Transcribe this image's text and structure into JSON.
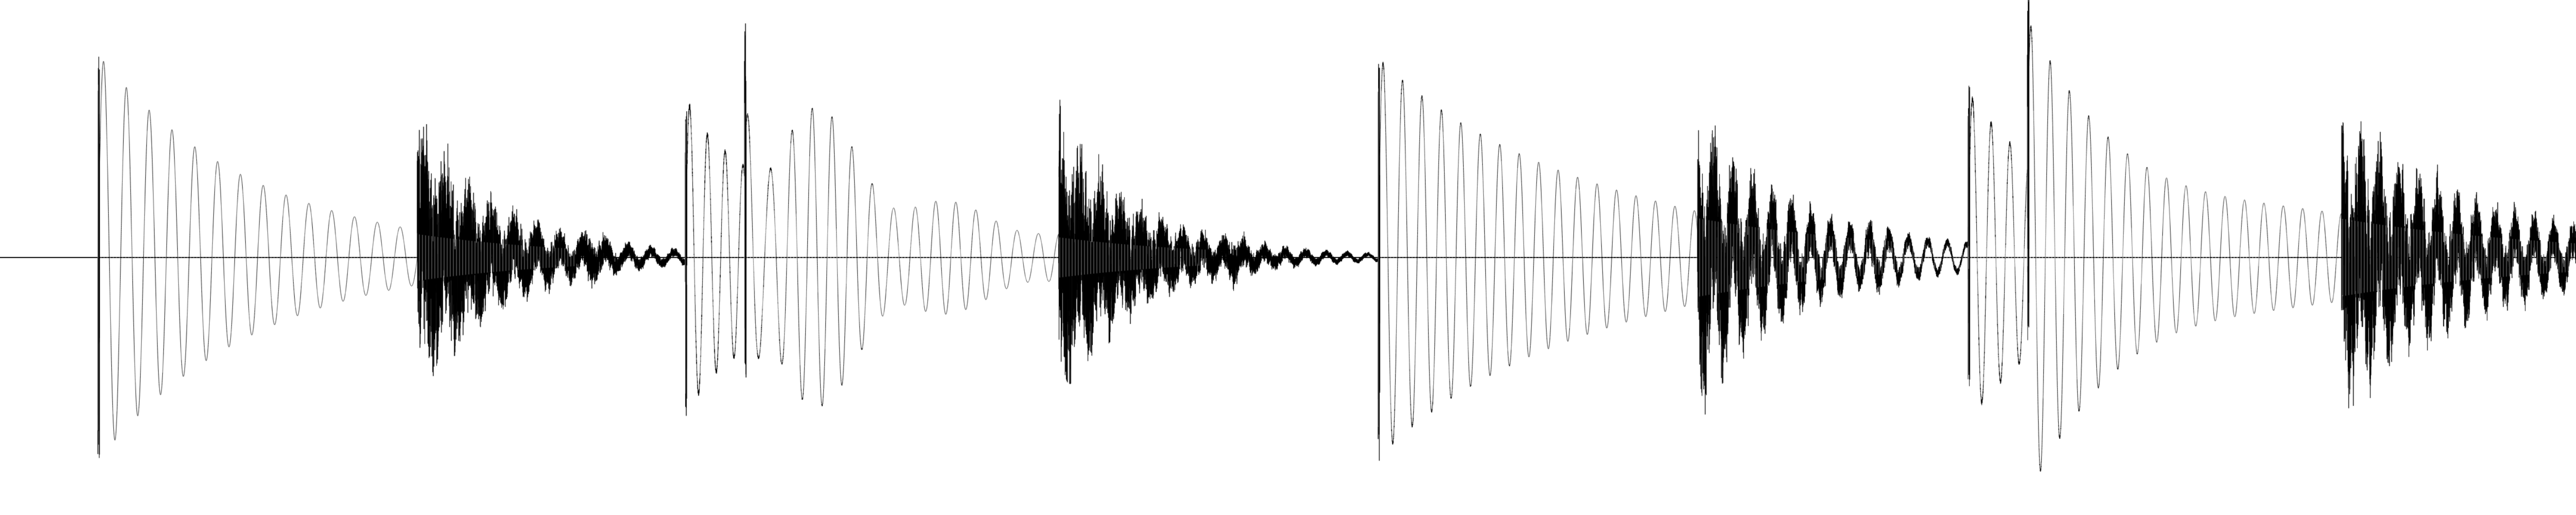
{
  "waveform": {
    "background_color": "#ffffff",
    "wave_color": "#000000",
    "hit_color": "#ffffff",
    "hits": [
      {
        "time": 0.038,
        "kind": "kick",
        "amplitude": 0.94,
        "decay": 0.062,
        "freq": 340,
        "cycles": 28
      },
      {
        "time": 0.162,
        "kind": "snare",
        "amplitude": 0.6,
        "decay": 0.03
      },
      {
        "time": 0.225,
        "kind": "ghost",
        "amplitude": 0.1,
        "decay": 0.008
      },
      {
        "time": 0.266,
        "kind": "kick",
        "amplitude": 0.74,
        "decay": 0.038,
        "freq": 360,
        "cycles": 22
      },
      {
        "time": 0.289,
        "kind": "kick",
        "amplitude": 0.84,
        "decay": 0.06,
        "freq": 340,
        "cycles": 30
      },
      {
        "time": 0.411,
        "kind": "snare",
        "amplitude": 0.6,
        "decay": 0.03
      },
      {
        "time": 0.474,
        "kind": "ghost",
        "amplitude": 0.1,
        "decay": 0.008
      },
      {
        "time": 0.535,
        "kind": "kick",
        "amplitude": 0.92,
        "decay": 0.085,
        "freq": 330,
        "cycles": 45
      },
      {
        "time": 0.659,
        "kind": "snare",
        "amplitude": 0.57,
        "decay": 0.03
      },
      {
        "time": 0.723,
        "kind": "ghost",
        "amplitude": 0.1,
        "decay": 0.008
      },
      {
        "time": 0.764,
        "kind": "kick",
        "amplitude": 0.78,
        "decay": 0.04,
        "freq": 360,
        "cycles": 22
      },
      {
        "time": 0.787,
        "kind": "kick",
        "amplitude": 0.82,
        "decay": 0.09,
        "freq": 340,
        "cycles": 48
      },
      {
        "time": 0.909,
        "kind": "snare",
        "amplitude": 0.56,
        "decay": 0.05
      }
    ]
  }
}
